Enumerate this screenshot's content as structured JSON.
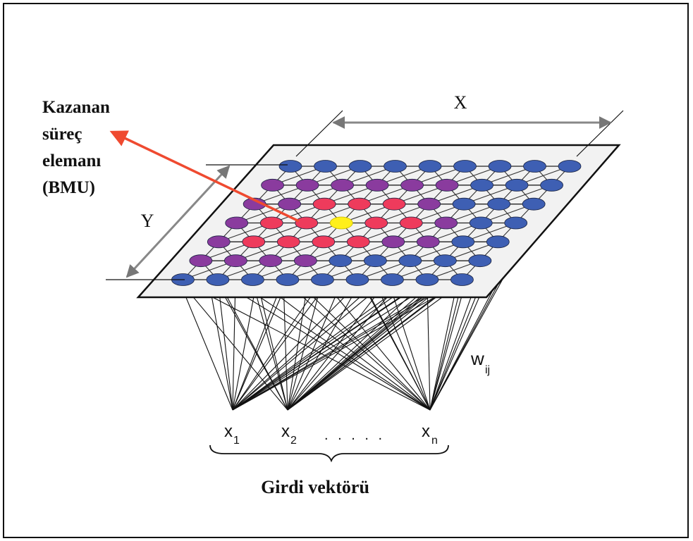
{
  "labels": {
    "winner": [
      "Kazanan",
      "süreç",
      "elemanı",
      "(BMU)"
    ],
    "x_dim": "X",
    "y_dim": "Y",
    "weight": "w",
    "weight_sub": "ij",
    "inputs": [
      {
        "base": "x",
        "sub": "1"
      },
      {
        "base": "x",
        "sub": "2"
      },
      {
        "base": "x",
        "sub": "n"
      }
    ],
    "dots": ". . . . .",
    "input_vector": "Girdi vektörü"
  },
  "grid": {
    "rows": 7,
    "cols": 9,
    "node_states": [
      "bbbbbbbbb",
      "ppppppbbb",
      "pprrrpbbb",
      "prrwrrpbb",
      "prrrrppbb",
      "ppppbbbbb",
      "bbbbbbbbb"
    ],
    "legend_state_codes": {
      "b": "blue",
      "p": "purple",
      "r": "red",
      "w": "winner"
    }
  },
  "colors": {
    "blue": "#3e5fb3",
    "purple": "#8a3b9e",
    "red": "#ee3b5c",
    "winner": "#ffef1a",
    "arrow": "#ef4a30",
    "lines": "#111111"
  }
}
